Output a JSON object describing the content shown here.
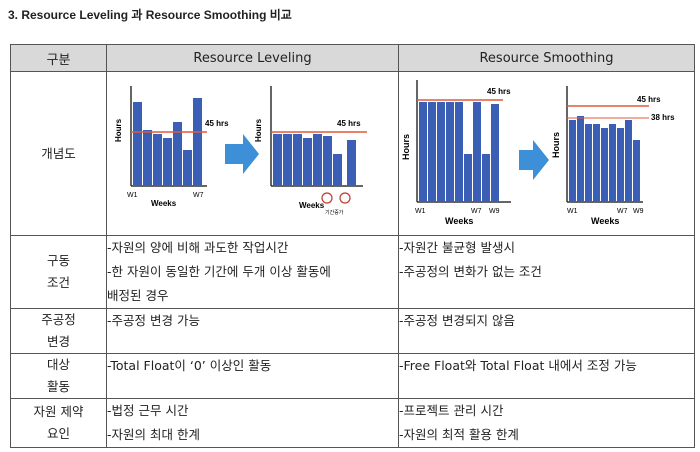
{
  "title": "3. Resource Leveling 과 Resource Smoothing 비교",
  "headers": {
    "category": "구분",
    "leveling": "Resource Leveling",
    "smoothing": "Resource Smoothing"
  },
  "diagram_row": {
    "label": "개념도",
    "labels": {
      "hours": "Hours",
      "weeks": "Weeks",
      "w1": "W1",
      "w7": "W7",
      "w9": "W9",
      "hrs45": "45 hrs",
      "hrs38": "38 hrs",
      "leveling_tag": "기간증가"
    }
  },
  "rows": [
    {
      "label": [
        "구동",
        "조건"
      ],
      "leveling": [
        "-자원의 양에 비해 과도한 작업시간",
        "-한 자원이 동일한 기간에 두개 이상 활동에",
        "배정된 경우"
      ],
      "smoothing": [
        "-자원간 불균형 발생시",
        "-주공정의 변화가 없는 조건"
      ]
    },
    {
      "label": [
        "주공정",
        "변경"
      ],
      "leveling": [
        "-주공정 변경 가능"
      ],
      "smoothing": [
        "-주공정 변경되지 않음"
      ]
    },
    {
      "label": [
        "대상",
        "활동"
      ],
      "leveling": [
        "-Total Float이 ‘0’ 이상인 활동"
      ],
      "smoothing": [
        "-Free Float와 Total Float 내에서 조정 가능"
      ]
    },
    {
      "label": [
        "자원 제약",
        "요인"
      ],
      "leveling": [
        "-법정 근무 시간",
        "-자원의 최대 한계"
      ],
      "smoothing": [
        "-프로젝트 관리 시간",
        "-자원의 최적 활용 한계"
      ]
    }
  ],
  "colors": {
    "bar": "#3a5fb5",
    "limit_line": "#e05a3a",
    "arrow": "#3d8fd8",
    "header_bg": "#d9d9d9"
  }
}
